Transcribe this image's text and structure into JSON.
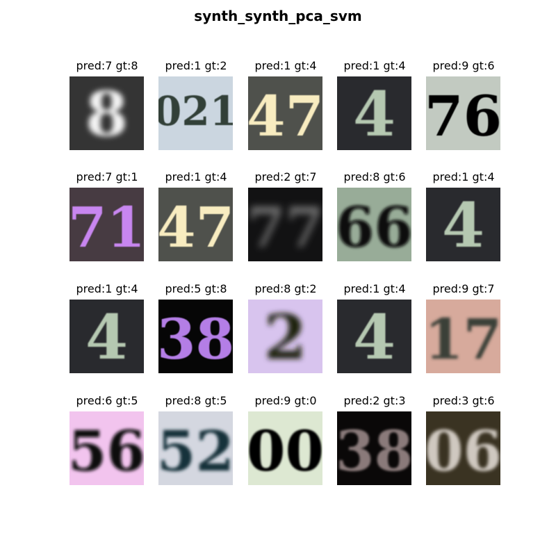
{
  "figure": {
    "title": "synth_synth_pca_svm"
  },
  "samples": [
    {
      "pred": "7",
      "gt": "8",
      "label": "pred:7 gt:8",
      "bg": "#343434",
      "fg": "#f4f4f4",
      "glyph": "8",
      "blur": 4
    },
    {
      "pred": "1",
      "gt": "2",
      "label": "pred:1 gt:2",
      "bg": "#cbd6e0",
      "fg": "#314039",
      "glyph": "021",
      "blur": 0.6
    },
    {
      "pred": "1",
      "gt": "4",
      "label": "pred:1 gt:4",
      "bg": "#4f514c",
      "fg": "#f8ecc0",
      "glyph": "47",
      "blur": 0.5
    },
    {
      "pred": "1",
      "gt": "4",
      "label": "pred:1 gt:4",
      "bg": "#292a2e",
      "fg": "#b5c8b1",
      "glyph": "4",
      "blur": 0.8
    },
    {
      "pred": "9",
      "gt": "6",
      "label": "pred:9 gt:6",
      "bg": "#c2cac1",
      "fg": "#050505",
      "glyph": "76",
      "blur": 0.4
    },
    {
      "pred": "7",
      "gt": "1",
      "label": "pred:7 gt:1",
      "bg": "#473b42",
      "fg": "#c886f0",
      "glyph": "71",
      "blur": 0.6
    },
    {
      "pred": "1",
      "gt": "4",
      "label": "pred:1 gt:4",
      "bg": "#4f514c",
      "fg": "#f8ecc0",
      "glyph": "47",
      "blur": 0.5
    },
    {
      "pred": "2",
      "gt": "7",
      "label": "pred:2 gt:7",
      "bg": "#121213",
      "fg": "#6a6a6a",
      "glyph": "77",
      "blur": 5
    },
    {
      "pred": "8",
      "gt": "6",
      "label": "pred:8 gt:6",
      "bg": "#98ac98",
      "fg": "#070707",
      "glyph": "66",
      "blur": 2
    },
    {
      "pred": "1",
      "gt": "4",
      "label": "pred:1 gt:4",
      "bg": "#292a2e",
      "fg": "#b5c8b1",
      "glyph": "4",
      "blur": 0.8
    },
    {
      "pred": "1",
      "gt": "4",
      "label": "pred:1 gt:4",
      "bg": "#292a2e",
      "fg": "#b5c8b1",
      "glyph": "4",
      "blur": 0.8
    },
    {
      "pred": "5",
      "gt": "8",
      "label": "pred:5 gt:8",
      "bg": "#060606",
      "fg": "#b47ee6",
      "glyph": "38",
      "blur": 0.6
    },
    {
      "pred": "8",
      "gt": "2",
      "label": "pred:8 gt:2",
      "bg": "#d8c4ee",
      "fg": "#1f2410",
      "glyph": "2",
      "blur": 4
    },
    {
      "pred": "1",
      "gt": "4",
      "label": "pred:1 gt:4",
      "bg": "#292a2e",
      "fg": "#b5c8b1",
      "glyph": "4",
      "blur": 0.8
    },
    {
      "pred": "9",
      "gt": "7",
      "label": "pred:9 gt:7",
      "bg": "#d7aa9c",
      "fg": "#3a4037",
      "glyph": "17",
      "blur": 2
    },
    {
      "pred": "6",
      "gt": "5",
      "label": "pred:6 gt:5",
      "bg": "#f2c4ee",
      "fg": "#111111",
      "glyph": "56",
      "blur": 2.5
    },
    {
      "pred": "8",
      "gt": "5",
      "label": "pred:8 gt:5",
      "bg": "#d4d7e0",
      "fg": "#15303a",
      "glyph": "52",
      "blur": 2.5
    },
    {
      "pred": "9",
      "gt": "0",
      "label": "pred:9 gt:0",
      "bg": "#dde8d2",
      "fg": "#020202",
      "glyph": "00",
      "blur": 1.2
    },
    {
      "pred": "2",
      "gt": "3",
      "label": "pred:2 gt:3",
      "bg": "#0a0808",
      "fg": "#8a7a7a",
      "glyph": "38",
      "blur": 1.5
    },
    {
      "pred": "3",
      "gt": "6",
      "label": "pred:3 gt:6",
      "bg": "#3a3322",
      "fg": "#cfc8c0",
      "glyph": "06",
      "blur": 2.5
    }
  ]
}
